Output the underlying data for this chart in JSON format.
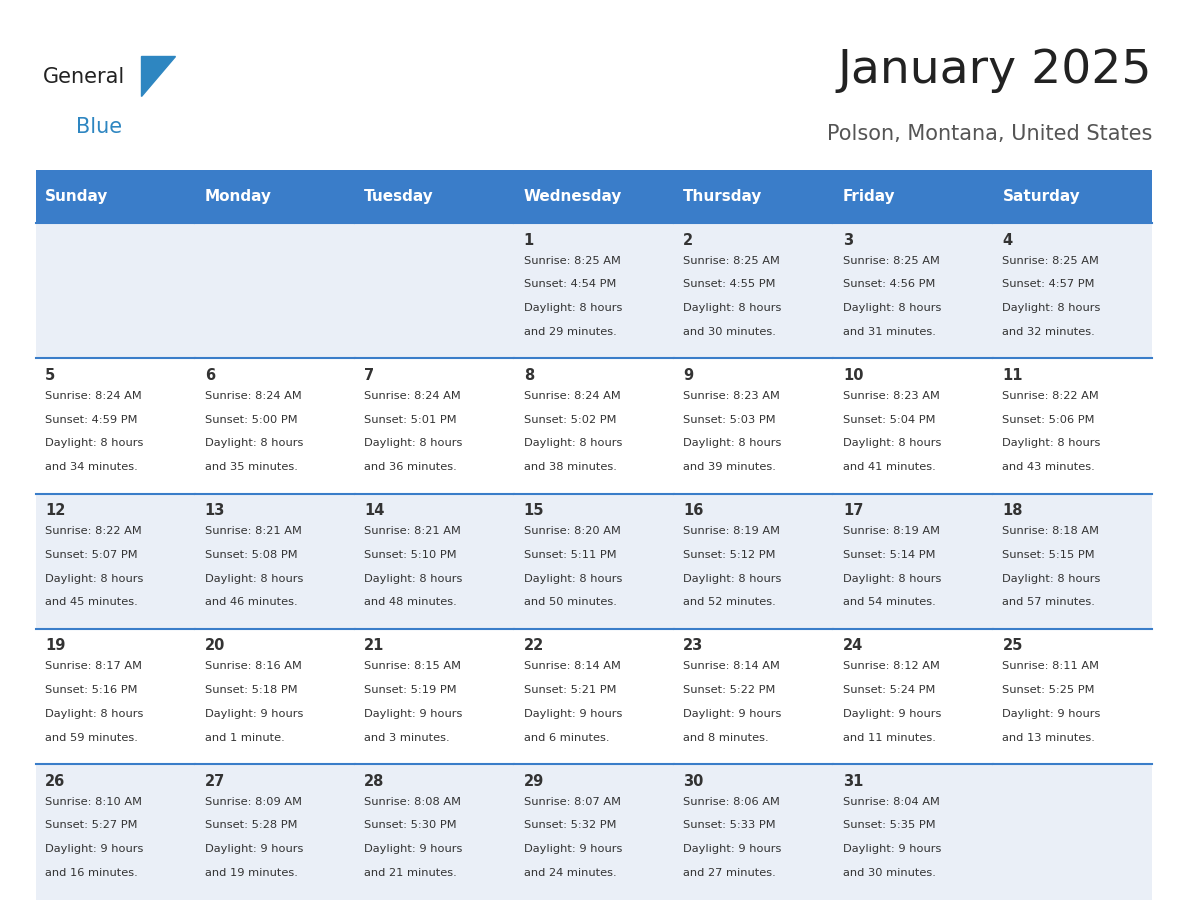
{
  "title": "January 2025",
  "subtitle": "Polson, Montana, United States",
  "days_of_week": [
    "Sunday",
    "Monday",
    "Tuesday",
    "Wednesday",
    "Thursday",
    "Friday",
    "Saturday"
  ],
  "header_bg": "#3A7DC9",
  "header_text": "#FFFFFF",
  "row_bg_odd": "#EAEFF7",
  "row_bg_even": "#FFFFFF",
  "cell_text_color": "#333333",
  "day_num_color": "#333333",
  "border_color": "#3A7DC9",
  "title_color": "#222222",
  "subtitle_color": "#555555",
  "logo_general_color": "#222222",
  "logo_blue_color": "#2E86C1",
  "weeks": [
    [
      {
        "day": null,
        "sunrise": null,
        "sunset": null,
        "daylight": null
      },
      {
        "day": null,
        "sunrise": null,
        "sunset": null,
        "daylight": null
      },
      {
        "day": null,
        "sunrise": null,
        "sunset": null,
        "daylight": null
      },
      {
        "day": 1,
        "sunrise": "8:25 AM",
        "sunset": "4:54 PM",
        "daylight": "8 hours and 29 minutes."
      },
      {
        "day": 2,
        "sunrise": "8:25 AM",
        "sunset": "4:55 PM",
        "daylight": "8 hours and 30 minutes."
      },
      {
        "day": 3,
        "sunrise": "8:25 AM",
        "sunset": "4:56 PM",
        "daylight": "8 hours and 31 minutes."
      },
      {
        "day": 4,
        "sunrise": "8:25 AM",
        "sunset": "4:57 PM",
        "daylight": "8 hours and 32 minutes."
      }
    ],
    [
      {
        "day": 5,
        "sunrise": "8:24 AM",
        "sunset": "4:59 PM",
        "daylight": "8 hours and 34 minutes."
      },
      {
        "day": 6,
        "sunrise": "8:24 AM",
        "sunset": "5:00 PM",
        "daylight": "8 hours and 35 minutes."
      },
      {
        "day": 7,
        "sunrise": "8:24 AM",
        "sunset": "5:01 PM",
        "daylight": "8 hours and 36 minutes."
      },
      {
        "day": 8,
        "sunrise": "8:24 AM",
        "sunset": "5:02 PM",
        "daylight": "8 hours and 38 minutes."
      },
      {
        "day": 9,
        "sunrise": "8:23 AM",
        "sunset": "5:03 PM",
        "daylight": "8 hours and 39 minutes."
      },
      {
        "day": 10,
        "sunrise": "8:23 AM",
        "sunset": "5:04 PM",
        "daylight": "8 hours and 41 minutes."
      },
      {
        "day": 11,
        "sunrise": "8:22 AM",
        "sunset": "5:06 PM",
        "daylight": "8 hours and 43 minutes."
      }
    ],
    [
      {
        "day": 12,
        "sunrise": "8:22 AM",
        "sunset": "5:07 PM",
        "daylight": "8 hours and 45 minutes."
      },
      {
        "day": 13,
        "sunrise": "8:21 AM",
        "sunset": "5:08 PM",
        "daylight": "8 hours and 46 minutes."
      },
      {
        "day": 14,
        "sunrise": "8:21 AM",
        "sunset": "5:10 PM",
        "daylight": "8 hours and 48 minutes."
      },
      {
        "day": 15,
        "sunrise": "8:20 AM",
        "sunset": "5:11 PM",
        "daylight": "8 hours and 50 minutes."
      },
      {
        "day": 16,
        "sunrise": "8:19 AM",
        "sunset": "5:12 PM",
        "daylight": "8 hours and 52 minutes."
      },
      {
        "day": 17,
        "sunrise": "8:19 AM",
        "sunset": "5:14 PM",
        "daylight": "8 hours and 54 minutes."
      },
      {
        "day": 18,
        "sunrise": "8:18 AM",
        "sunset": "5:15 PM",
        "daylight": "8 hours and 57 minutes."
      }
    ],
    [
      {
        "day": 19,
        "sunrise": "8:17 AM",
        "sunset": "5:16 PM",
        "daylight": "8 hours and 59 minutes."
      },
      {
        "day": 20,
        "sunrise": "8:16 AM",
        "sunset": "5:18 PM",
        "daylight": "9 hours and 1 minute."
      },
      {
        "day": 21,
        "sunrise": "8:15 AM",
        "sunset": "5:19 PM",
        "daylight": "9 hours and 3 minutes."
      },
      {
        "day": 22,
        "sunrise": "8:14 AM",
        "sunset": "5:21 PM",
        "daylight": "9 hours and 6 minutes."
      },
      {
        "day": 23,
        "sunrise": "8:14 AM",
        "sunset": "5:22 PM",
        "daylight": "9 hours and 8 minutes."
      },
      {
        "day": 24,
        "sunrise": "8:12 AM",
        "sunset": "5:24 PM",
        "daylight": "9 hours and 11 minutes."
      },
      {
        "day": 25,
        "sunrise": "8:11 AM",
        "sunset": "5:25 PM",
        "daylight": "9 hours and 13 minutes."
      }
    ],
    [
      {
        "day": 26,
        "sunrise": "8:10 AM",
        "sunset": "5:27 PM",
        "daylight": "9 hours and 16 minutes."
      },
      {
        "day": 27,
        "sunrise": "8:09 AM",
        "sunset": "5:28 PM",
        "daylight": "9 hours and 19 minutes."
      },
      {
        "day": 28,
        "sunrise": "8:08 AM",
        "sunset": "5:30 PM",
        "daylight": "9 hours and 21 minutes."
      },
      {
        "day": 29,
        "sunrise": "8:07 AM",
        "sunset": "5:32 PM",
        "daylight": "9 hours and 24 minutes."
      },
      {
        "day": 30,
        "sunrise": "8:06 AM",
        "sunset": "5:33 PM",
        "daylight": "9 hours and 27 minutes."
      },
      {
        "day": 31,
        "sunrise": "8:04 AM",
        "sunset": "5:35 PM",
        "daylight": "9 hours and 30 minutes."
      },
      {
        "day": null,
        "sunrise": null,
        "sunset": null,
        "daylight": null
      }
    ]
  ]
}
